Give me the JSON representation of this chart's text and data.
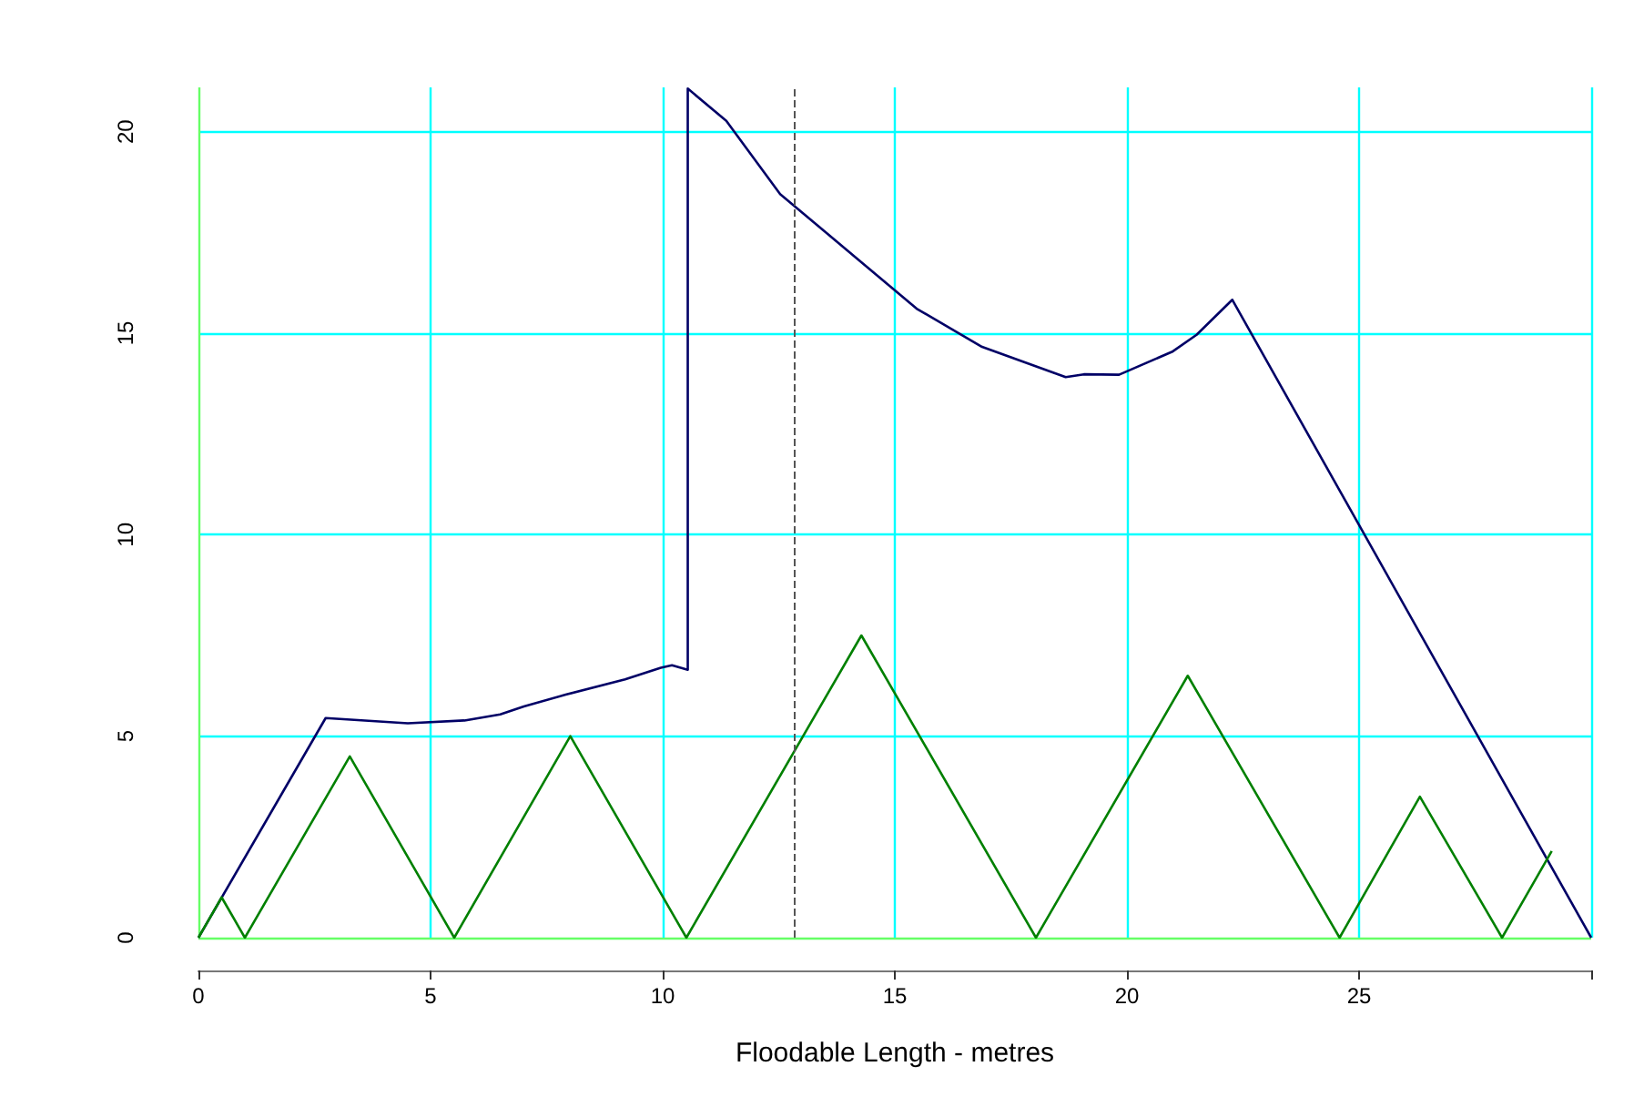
{
  "chart_data": {
    "type": "line",
    "xlabel": "Floodable Length - metres",
    "xlim": [
      0,
      30
    ],
    "ylim": [
      0,
      21.1
    ],
    "xticks": [
      0,
      5,
      10,
      15,
      20,
      25,
      {
        "value": 30,
        "label": null
      }
    ],
    "yticks": [
      0,
      5,
      10,
      15,
      20
    ],
    "grid": true,
    "marker": "none",
    "line_style": "solid",
    "series": [
      {
        "color": "#000066",
        "x": [
          0,
          2.74,
          4.51,
          5.73,
          6.5,
          7.01,
          7.91,
          9.19,
          9.96,
          10.2,
          10.54,
          10.54,
          11.37,
          12.53,
          14.19,
          15.47,
          16.88,
          18.68,
          19.07,
          19.83,
          20.99,
          21.5,
          22.27,
          30
        ],
        "values": [
          0,
          5.45,
          5.32,
          5.39,
          5.54,
          5.74,
          6.03,
          6.41,
          6.7,
          6.76,
          6.65,
          21.07,
          20.27,
          18.45,
          16.85,
          15.61,
          14.66,
          13.91,
          13.98,
          13.97,
          14.55,
          14.96,
          15.83,
          0
        ]
      },
      {
        "color": "#008000",
        "x": [
          0,
          0.5,
          1.0,
          3.26,
          5.51,
          8.01,
          10.51,
          14.28,
          18.04,
          21.31,
          24.58,
          26.31,
          28.08,
          29.15
        ],
        "values": [
          0,
          1,
          0,
          4.5,
          0,
          5,
          0,
          7.5,
          0,
          6.5,
          0,
          3.5,
          0,
          2.15
        ]
      }
    ],
    "ref_lines": [
      {
        "axis": "x",
        "value": 12.82,
        "color": "#555555",
        "line_style": "dashed"
      }
    ]
  }
}
